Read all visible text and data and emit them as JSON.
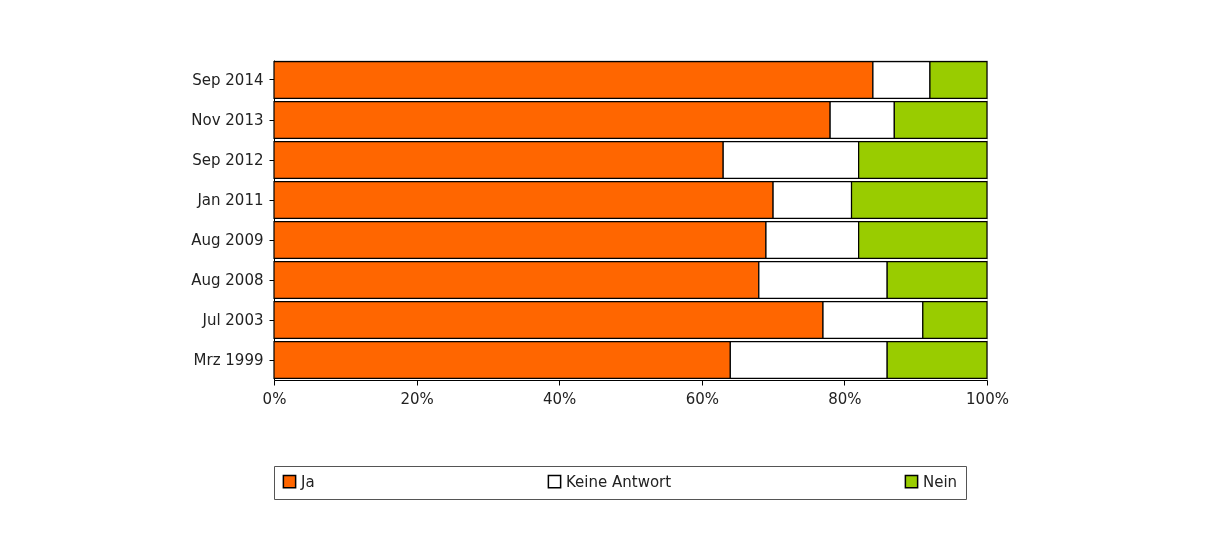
{
  "chart_data": {
    "type": "bar",
    "orientation": "horizontal",
    "stacked": true,
    "categories": [
      "Sep 2014",
      "Nov 2013",
      "Sep 2012",
      "Jan 2011",
      "Aug 2009",
      "Aug 2008",
      "Jul 2003",
      "Mrz 1999"
    ],
    "series": [
      {
        "name": "Ja",
        "color": "#ff6600",
        "values": [
          84,
          78,
          63,
          70,
          69,
          68,
          77,
          64
        ]
      },
      {
        "name": "Keine Antwort",
        "color": "#ffffff",
        "values": [
          8,
          9,
          19,
          11,
          13,
          18,
          14,
          22
        ]
      },
      {
        "name": "Nein",
        "color": "#99cc00",
        "values": [
          8,
          13,
          18,
          19,
          18,
          14,
          9,
          14
        ]
      }
    ],
    "xlim": [
      0,
      100
    ],
    "xticks": [
      {
        "value": 0,
        "label": "0%"
      },
      {
        "value": 20,
        "label": "20%"
      },
      {
        "value": 40,
        "label": "40%"
      },
      {
        "value": 60,
        "label": "60%"
      },
      {
        "value": 80,
        "label": "80%"
      },
      {
        "value": 100,
        "label": "100%"
      }
    ],
    "grid": false,
    "legend": "bottom"
  }
}
